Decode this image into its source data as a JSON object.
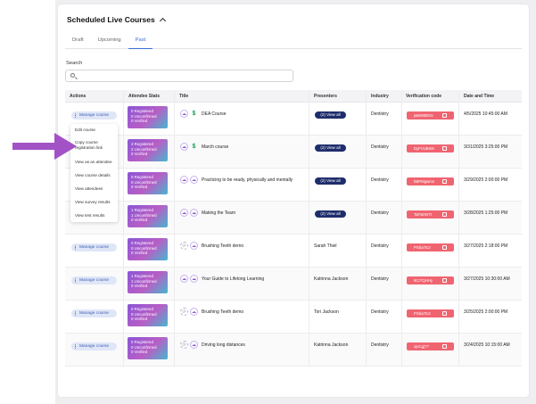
{
  "header": {
    "title": "Scheduled Live Courses"
  },
  "tabs": [
    {
      "label": "Draft",
      "active": false
    },
    {
      "label": "Upcoming",
      "active": false
    },
    {
      "label": "Past",
      "active": true
    }
  ],
  "search": {
    "label": "Search",
    "placeholder": ""
  },
  "table": {
    "columns": [
      "Actions",
      "Attendee Stats",
      "Title",
      "Presenters",
      "Industry",
      "Verification code",
      "Date and Time"
    ],
    "rows": [
      {
        "manage": "Manage course",
        "stats": [
          "0 Registered",
          "0 Unconfirmed",
          "0 Verified"
        ],
        "icons": [
          "brain-icon",
          "dollar-icon"
        ],
        "title": "DEA Course",
        "presenter_type": "button",
        "presenter": "(2) View all",
        "industry": "Dentistry",
        "code": "jwBW8EDs",
        "date": "4/5/2025 10:45:00 AM"
      },
      {
        "manage": "Manage course",
        "stats": [
          "3 Registered",
          "2 Unconfirmed",
          "0 Verified"
        ],
        "icons": [
          "brain-icon",
          "dollar-icon"
        ],
        "title": "March course",
        "presenter_type": "button",
        "presenter": "(2) View all",
        "industry": "Dentistry",
        "code": "DyFVUBm8",
        "date": "3/31/2025 3:25:00 PM"
      },
      {
        "manage": "Manage course",
        "stats": [
          "0 Registered",
          "0 Unconfirmed",
          "0 Verified"
        ],
        "icons": [
          "brain-icon",
          "brain-icon"
        ],
        "title": "Practicing to be ready, physically and mentally",
        "presenter_type": "button",
        "presenter": "(2) View all",
        "industry": "Dentistry",
        "code": "hBPMgwmn",
        "date": "3/29/2025 2:00:00 PM"
      },
      {
        "manage": "Manage course",
        "stats": [
          "1 Registered",
          "1 Unconfirmed",
          "0 Verified"
        ],
        "icons": [
          "brain-icon",
          "brain-icon"
        ],
        "title": "Making the Team",
        "presenter_type": "button",
        "presenter": "(2) View all",
        "industry": "Dentistry",
        "code": "TaFsEW7t",
        "date": "3/28/2025 1:25:00 PM"
      },
      {
        "manage": "Manage course",
        "stats": [
          "0 Registered",
          "0 Unconfirmed",
          "0 Verified"
        ],
        "icons": [
          "sync-icon",
          "brain-icon"
        ],
        "title": "Brushing Teeth demo",
        "presenter_type": "text",
        "presenter": "Sarah Thiel",
        "industry": "Dentistry",
        "code": "PSba7tc2",
        "date": "3/27/2025 2:18:00 PM"
      },
      {
        "manage": "Manage course",
        "stats": [
          "1 Registered",
          "1 Unconfirmed",
          "0 Verified"
        ],
        "icons": [
          "brain-icon",
          "brain-icon"
        ],
        "title": "Your Guide to Lifelong Learning",
        "presenter_type": "text",
        "presenter": "Katrinna Jackson",
        "industry": "Dentistry",
        "code": "9Cr7QHHy",
        "date": "3/27/2025 10:30:00 AM"
      },
      {
        "manage": "Manage course",
        "stats": [
          "0 Registered",
          "0 Unconfirmed",
          "0 Verified"
        ],
        "icons": [
          "sync-icon",
          "brain-icon"
        ],
        "title": "Brushing Teeth demo",
        "presenter_type": "text",
        "presenter": "Tori Jackson",
        "industry": "Dentistry",
        "code": "PSba7tc2",
        "date": "3/25/2025 2:00:00 PM"
      },
      {
        "manage": "Manage course",
        "stats": [
          "0 Registered",
          "0 Unconfirmed",
          "0 Verified"
        ],
        "icons": [
          "sync-icon",
          "brain-icon"
        ],
        "title": "Driving long distances",
        "presenter_type": "text",
        "presenter": "Katrinna Jackson",
        "industry": "Dentistry",
        "code": "xjeCgjT7",
        "date": "3/24/2025 10:15:00 AM"
      }
    ]
  },
  "menu": {
    "items": [
      "Edit course",
      "Copy course registration link",
      "View as an attendee",
      "View course details",
      "View attendees",
      "View survey results",
      "View test results"
    ]
  },
  "colors": {
    "accent": "#3d6fd8",
    "view_all": "#1e2d6b",
    "code_badge": "#f06470",
    "arrow": "#a352c6"
  }
}
